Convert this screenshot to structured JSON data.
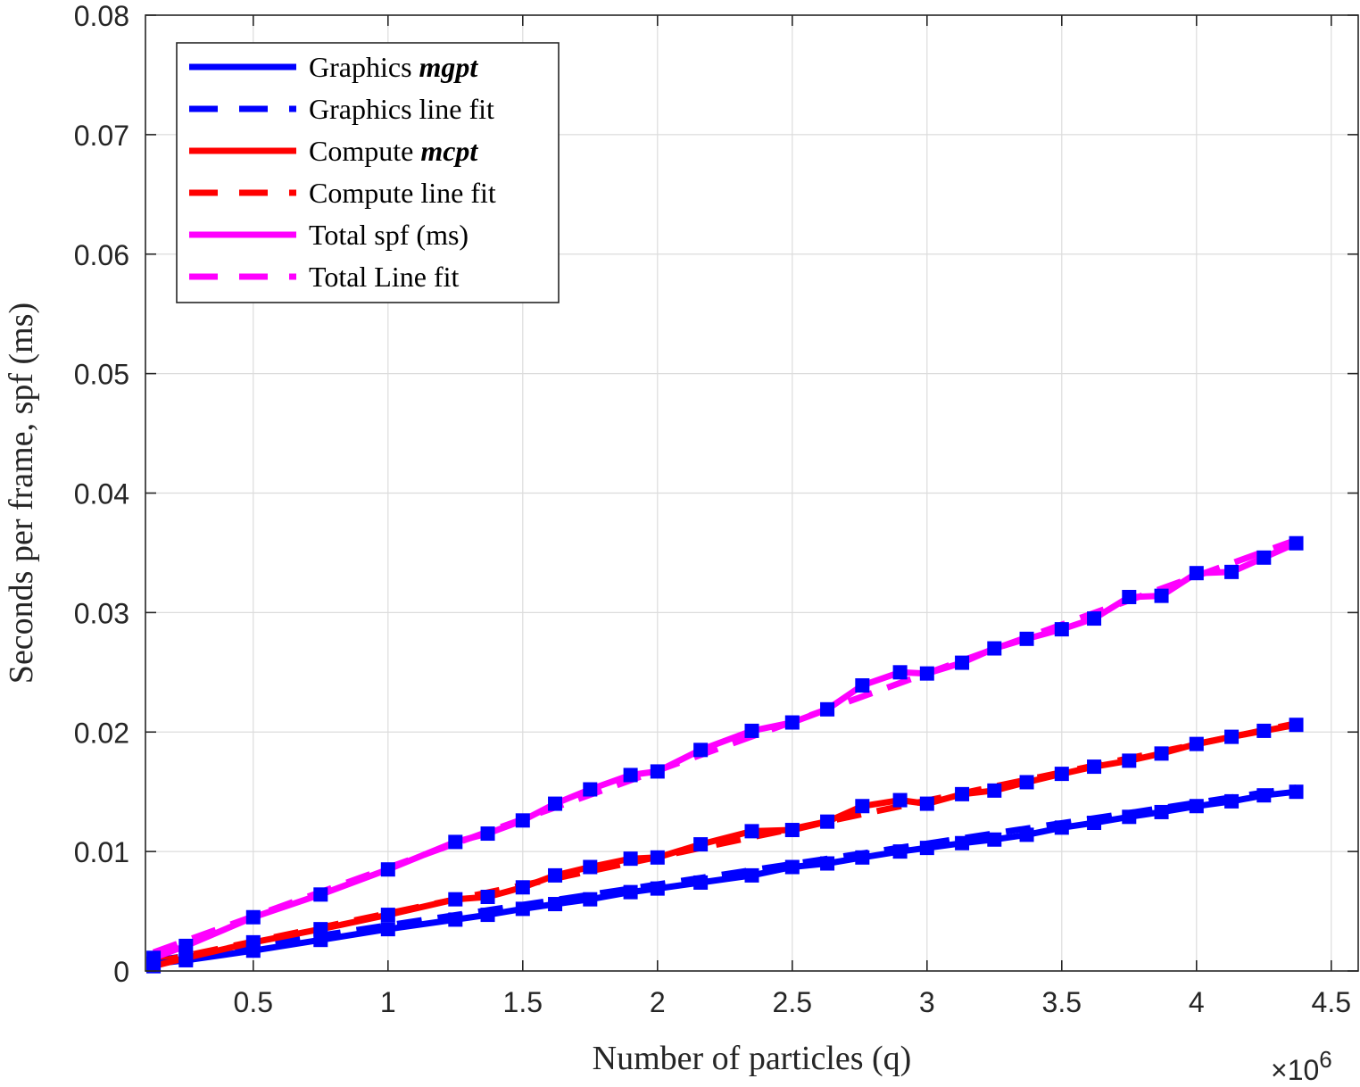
{
  "chart_data": {
    "type": "line",
    "title": "",
    "xlabel": "Number of particles (q)",
    "ylabel": "Seconds per frame, spf (ms)",
    "x_multiplier_label": "×10",
    "x_multiplier_exponent": "6",
    "x_scale": 1000000,
    "xlim": [
      0.1,
      4.6
    ],
    "ylim": [
      0,
      0.08
    ],
    "x_ticks": [
      0.5,
      1,
      1.5,
      2,
      2.5,
      3,
      3.5,
      4,
      4.5
    ],
    "x_tick_labels": [
      "0.5",
      "1",
      "1.5",
      "2",
      "2.5",
      "3",
      "3.5",
      "4",
      "4.5"
    ],
    "y_ticks": [
      0,
      0.01,
      0.02,
      0.03,
      0.04,
      0.05,
      0.06,
      0.07,
      0.08
    ],
    "y_tick_labels": [
      "0",
      "0.01",
      "0.02",
      "0.03",
      "0.04",
      "0.05",
      "0.06",
      "0.07",
      "0.08"
    ],
    "grid": true,
    "legend_position": "top-left",
    "x": [
      0.13,
      0.25,
      0.5,
      0.75,
      1.0,
      1.25,
      1.37,
      1.5,
      1.62,
      1.75,
      1.9,
      2.0,
      2.16,
      2.35,
      2.5,
      2.63,
      2.76,
      2.9,
      3.0,
      3.13,
      3.25,
      3.37,
      3.5,
      3.62,
      3.75,
      3.87,
      4.0,
      4.13,
      4.25,
      4.37
    ],
    "series": [
      {
        "name_prefix": "Graphics ",
        "name_emphasis": "mgpt",
        "color": "#0000ff",
        "dash": "solid",
        "marker": "square",
        "values": [
          0.0006,
          0.0009,
          0.0017,
          0.0026,
          0.0035,
          0.0043,
          0.0047,
          0.0052,
          0.0056,
          0.006,
          0.0066,
          0.0069,
          0.0074,
          0.008,
          0.0087,
          0.009,
          0.0095,
          0.01,
          0.0103,
          0.0107,
          0.011,
          0.0114,
          0.012,
          0.0124,
          0.0129,
          0.0133,
          0.0138,
          0.0142,
          0.0147,
          0.015
        ]
      },
      {
        "name": "Graphics line fit",
        "color": "#0000ff",
        "dash": "dashed",
        "fit": [
          0.00342,
          0.0004
        ]
      },
      {
        "name_prefix": "Compute ",
        "name_emphasis": "mcpt",
        "color": "#ff0000",
        "dash": "solid",
        "marker": "square",
        "values": [
          0.0004,
          0.0011,
          0.0024,
          0.0035,
          0.0047,
          0.006,
          0.0062,
          0.007,
          0.008,
          0.0087,
          0.0094,
          0.0095,
          0.0106,
          0.0117,
          0.0118,
          0.0125,
          0.0138,
          0.0143,
          0.014,
          0.0148,
          0.0151,
          0.0158,
          0.0165,
          0.0171,
          0.0176,
          0.0182,
          0.019,
          0.0196,
          0.0201,
          0.0206
        ]
      },
      {
        "name": "Compute line fit",
        "color": "#ff0000",
        "dash": "dashed",
        "fit": [
          0.00472,
          0.0001
        ]
      },
      {
        "name": "Total spf (ms)",
        "color": "#ff00ff",
        "dash": "solid",
        "marker": "square",
        "values": [
          0.0011,
          0.0021,
          0.0045,
          0.0064,
          0.0085,
          0.0108,
          0.0115,
          0.0126,
          0.014,
          0.0152,
          0.0164,
          0.0167,
          0.0185,
          0.0201,
          0.0208,
          0.0219,
          0.0239,
          0.025,
          0.0249,
          0.0258,
          0.027,
          0.0278,
          0.0286,
          0.0295,
          0.0313,
          0.0314,
          0.0333,
          0.0334,
          0.0346,
          0.0358
        ]
      },
      {
        "name": "Total Line fit",
        "color": "#ff00ff",
        "dash": "dashed",
        "fit": [
          0.00814,
          0.0005
        ]
      }
    ]
  }
}
